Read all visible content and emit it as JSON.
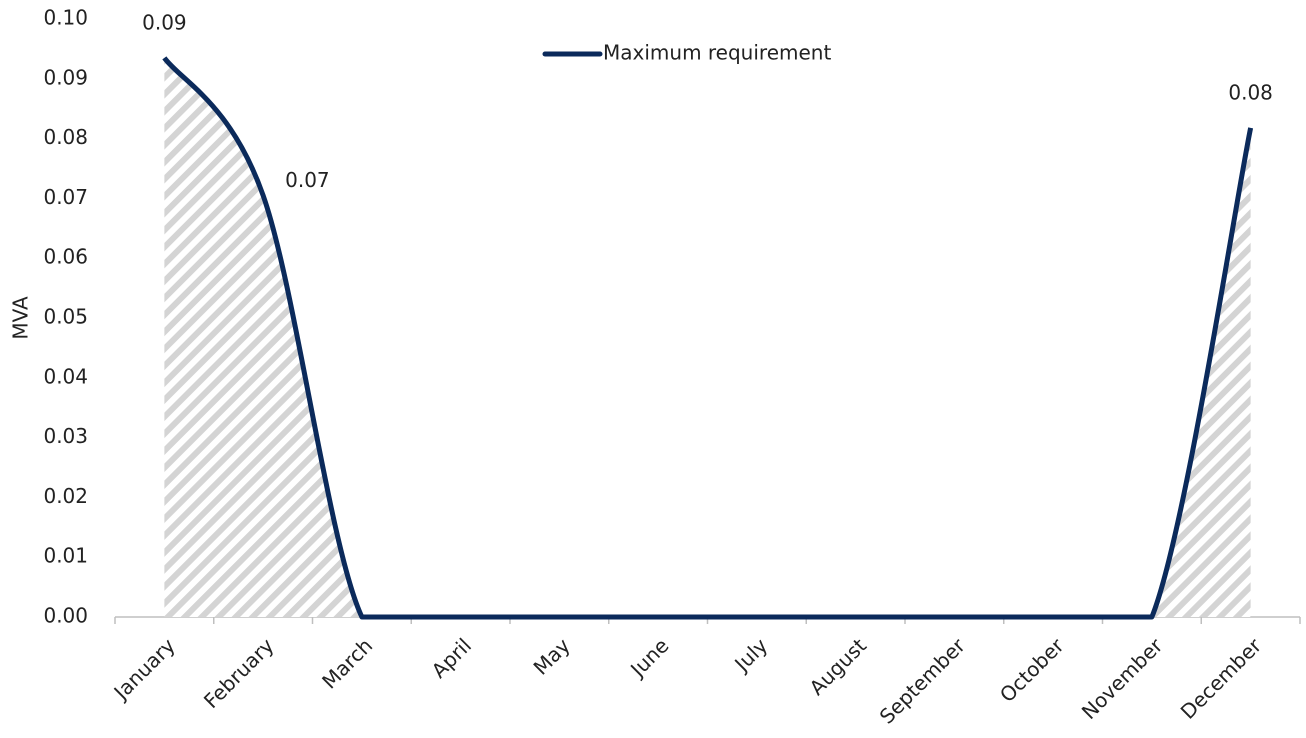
{
  "chart_data": {
    "type": "line",
    "y_label": "MVA",
    "categories": [
      "January",
      "February",
      "March",
      "April",
      "May",
      "June",
      "July",
      "August",
      "September",
      "October",
      "November",
      "December"
    ],
    "series": [
      {
        "name": "Maximum requirement",
        "color": "#0b2a5b",
        "values": [
          0.0935,
          0.0705,
          0,
          0,
          0,
          0,
          0,
          0,
          0,
          0,
          0,
          0.0818
        ],
        "value_labels": [
          "0.09",
          "0.07",
          null,
          null,
          null,
          null,
          null,
          null,
          null,
          null,
          null,
          "0.08"
        ]
      }
    ],
    "area_fill": "hatched",
    "ylim": [
      0,
      0.1
    ],
    "yticks": [
      {
        "value": 0,
        "label": "0.00"
      },
      0.01,
      0.02,
      0.03,
      0.04,
      0.05,
      0.06,
      0.07,
      0.08,
      0.09,
      {
        "value": 0.1,
        "label": "0.10"
      }
    ],
    "legend": "top"
  }
}
